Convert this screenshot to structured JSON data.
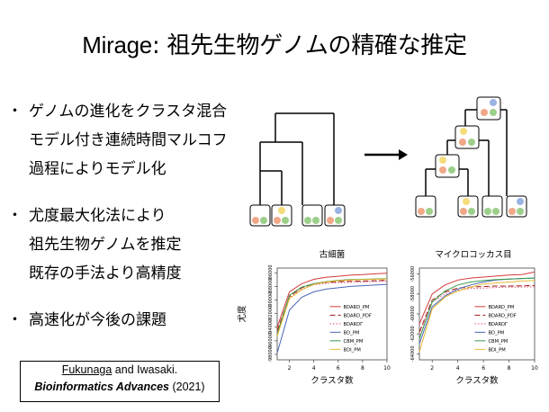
{
  "slide": {
    "title_latin": "Mirage",
    "title_rest": ": 祖先生物ゲノムの精確な推定",
    "bullet_symbol": "・",
    "bullets": [
      {
        "lines": [
          "ゲノムの進化をクラスタ混合",
          "モデル付き連続時間マルコフ",
          "過程によりモデル化"
        ]
      },
      {
        "lines": [
          "尤度最大化法により",
          "祖先生物ゲノムを推定",
          "既存の手法より高精度"
        ]
      },
      {
        "lines": [
          "高速化が今後の課題"
        ]
      }
    ],
    "reference": {
      "author": "Fukunaga",
      "and": " and ",
      "coauthor": "Iwasaki.",
      "journal": "Bioinformatics Advances",
      "year": " (2021)"
    }
  },
  "colors": {
    "green": "#9ccf8a",
    "orange": "#f0a888",
    "yellow": "#f5dc7a",
    "blue": "#9bb3e3"
  },
  "chart_data": [
    {
      "type": "line",
      "title": "古細菌",
      "xlabel": "クラスタ数",
      "ylabel": "尤度",
      "x": [
        1,
        2,
        3,
        4,
        5,
        6,
        7,
        8,
        9,
        10
      ],
      "xticks": [
        2,
        4,
        6,
        8,
        10
      ],
      "yticks": [
        -98000,
        -96000,
        -94000,
        -92000,
        -90000,
        -88000,
        -86000
      ],
      "ylim": [
        -98800,
        -85300
      ],
      "legend_position": "bottom-right",
      "series": [
        {
          "name": "BDARD_PM",
          "color": "#d43a3a",
          "dash": "",
          "values": [
            -94000,
            -88800,
            -87600,
            -86950,
            -86650,
            -86500,
            -86350,
            -86250,
            -86150,
            -86050
          ]
        },
        {
          "name": "BDARD_PDF",
          "color": "#a01818",
          "dash": "6,3",
          "values": [
            -94500,
            -89500,
            -88200,
            -87600,
            -87400,
            -87300,
            -87250,
            -87200,
            -87150,
            -87100
          ]
        },
        {
          "name": "BDARDΓ",
          "color": "#e0506a",
          "dash": "1.5,2",
          "values": [
            -94700,
            -89700,
            -88400,
            -87750,
            -87550,
            -87450,
            -87400,
            -87350,
            -87300,
            -87250
          ]
        },
        {
          "name": "BD_PM",
          "color": "#4a64b8",
          "dash": "",
          "values": [
            -97800,
            -91500,
            -89600,
            -88800,
            -88400,
            -88200,
            -88000,
            -87900,
            -87800,
            -87700
          ]
        },
        {
          "name": "CBM_PM",
          "color": "#3a9a4a",
          "dash": "",
          "values": [
            -95000,
            -89300,
            -88100,
            -87600,
            -87300,
            -87100,
            -87000,
            -86950,
            -86900,
            -86850
          ]
        },
        {
          "name": "BDI_PM",
          "color": "#e8b830",
          "dash": "",
          "values": [
            -95300,
            -89800,
            -88500,
            -87700,
            -87350,
            -87150,
            -87050,
            -87000,
            -86950,
            -86900
          ]
        }
      ]
    },
    {
      "type": "line",
      "title": "マイクロコッカス目",
      "xlabel": "クラスタ数",
      "ylabel": "",
      "x": [
        1,
        2,
        3,
        4,
        5,
        6,
        7,
        8,
        9,
        10
      ],
      "xticks": [
        2,
        4,
        6,
        8,
        10
      ],
      "yticks": [
        -64000,
        -62000,
        -60000,
        -58000,
        -56000
      ],
      "ylim": [
        -64600,
        -55400
      ],
      "legend_position": "bottom-right",
      "series": [
        {
          "name": "BDARD_PM",
          "color": "#d43a3a",
          "dash": "",
          "values": [
            -61000,
            -58000,
            -57100,
            -56600,
            -56400,
            -56300,
            -56200,
            -56100,
            -56050,
            -55800
          ]
        },
        {
          "name": "BDARD_PDF",
          "color": "#a01818",
          "dash": "6,3",
          "values": [
            -61800,
            -58600,
            -57800,
            -57400,
            -57300,
            -57250,
            -57200,
            -57200,
            -57180,
            -57150
          ]
        },
        {
          "name": "BDARDΓ",
          "color": "#e0506a",
          "dash": "1.5,2",
          "values": [
            -62000,
            -58800,
            -58000,
            -57600,
            -57450,
            -57400,
            -57350,
            -57300,
            -57300,
            -57280
          ]
        },
        {
          "name": "BD_PM",
          "color": "#4a64b8",
          "dash": "",
          "values": [
            -63000,
            -59300,
            -58200,
            -57500,
            -57100,
            -56800,
            -56600,
            -56500,
            -56450,
            -56400
          ]
        },
        {
          "name": "CBM_PM",
          "color": "#3a9a4a",
          "dash": "",
          "values": [
            -62500,
            -58800,
            -57700,
            -57100,
            -56800,
            -56650,
            -56550,
            -56500,
            -56450,
            -56400
          ]
        },
        {
          "name": "BDI_PM",
          "color": "#e8b830",
          "dash": "",
          "values": [
            -63800,
            -59500,
            -58300,
            -57700,
            -57300,
            -57000,
            -56900,
            -56800,
            -56700,
            -56650
          ]
        }
      ]
    }
  ]
}
